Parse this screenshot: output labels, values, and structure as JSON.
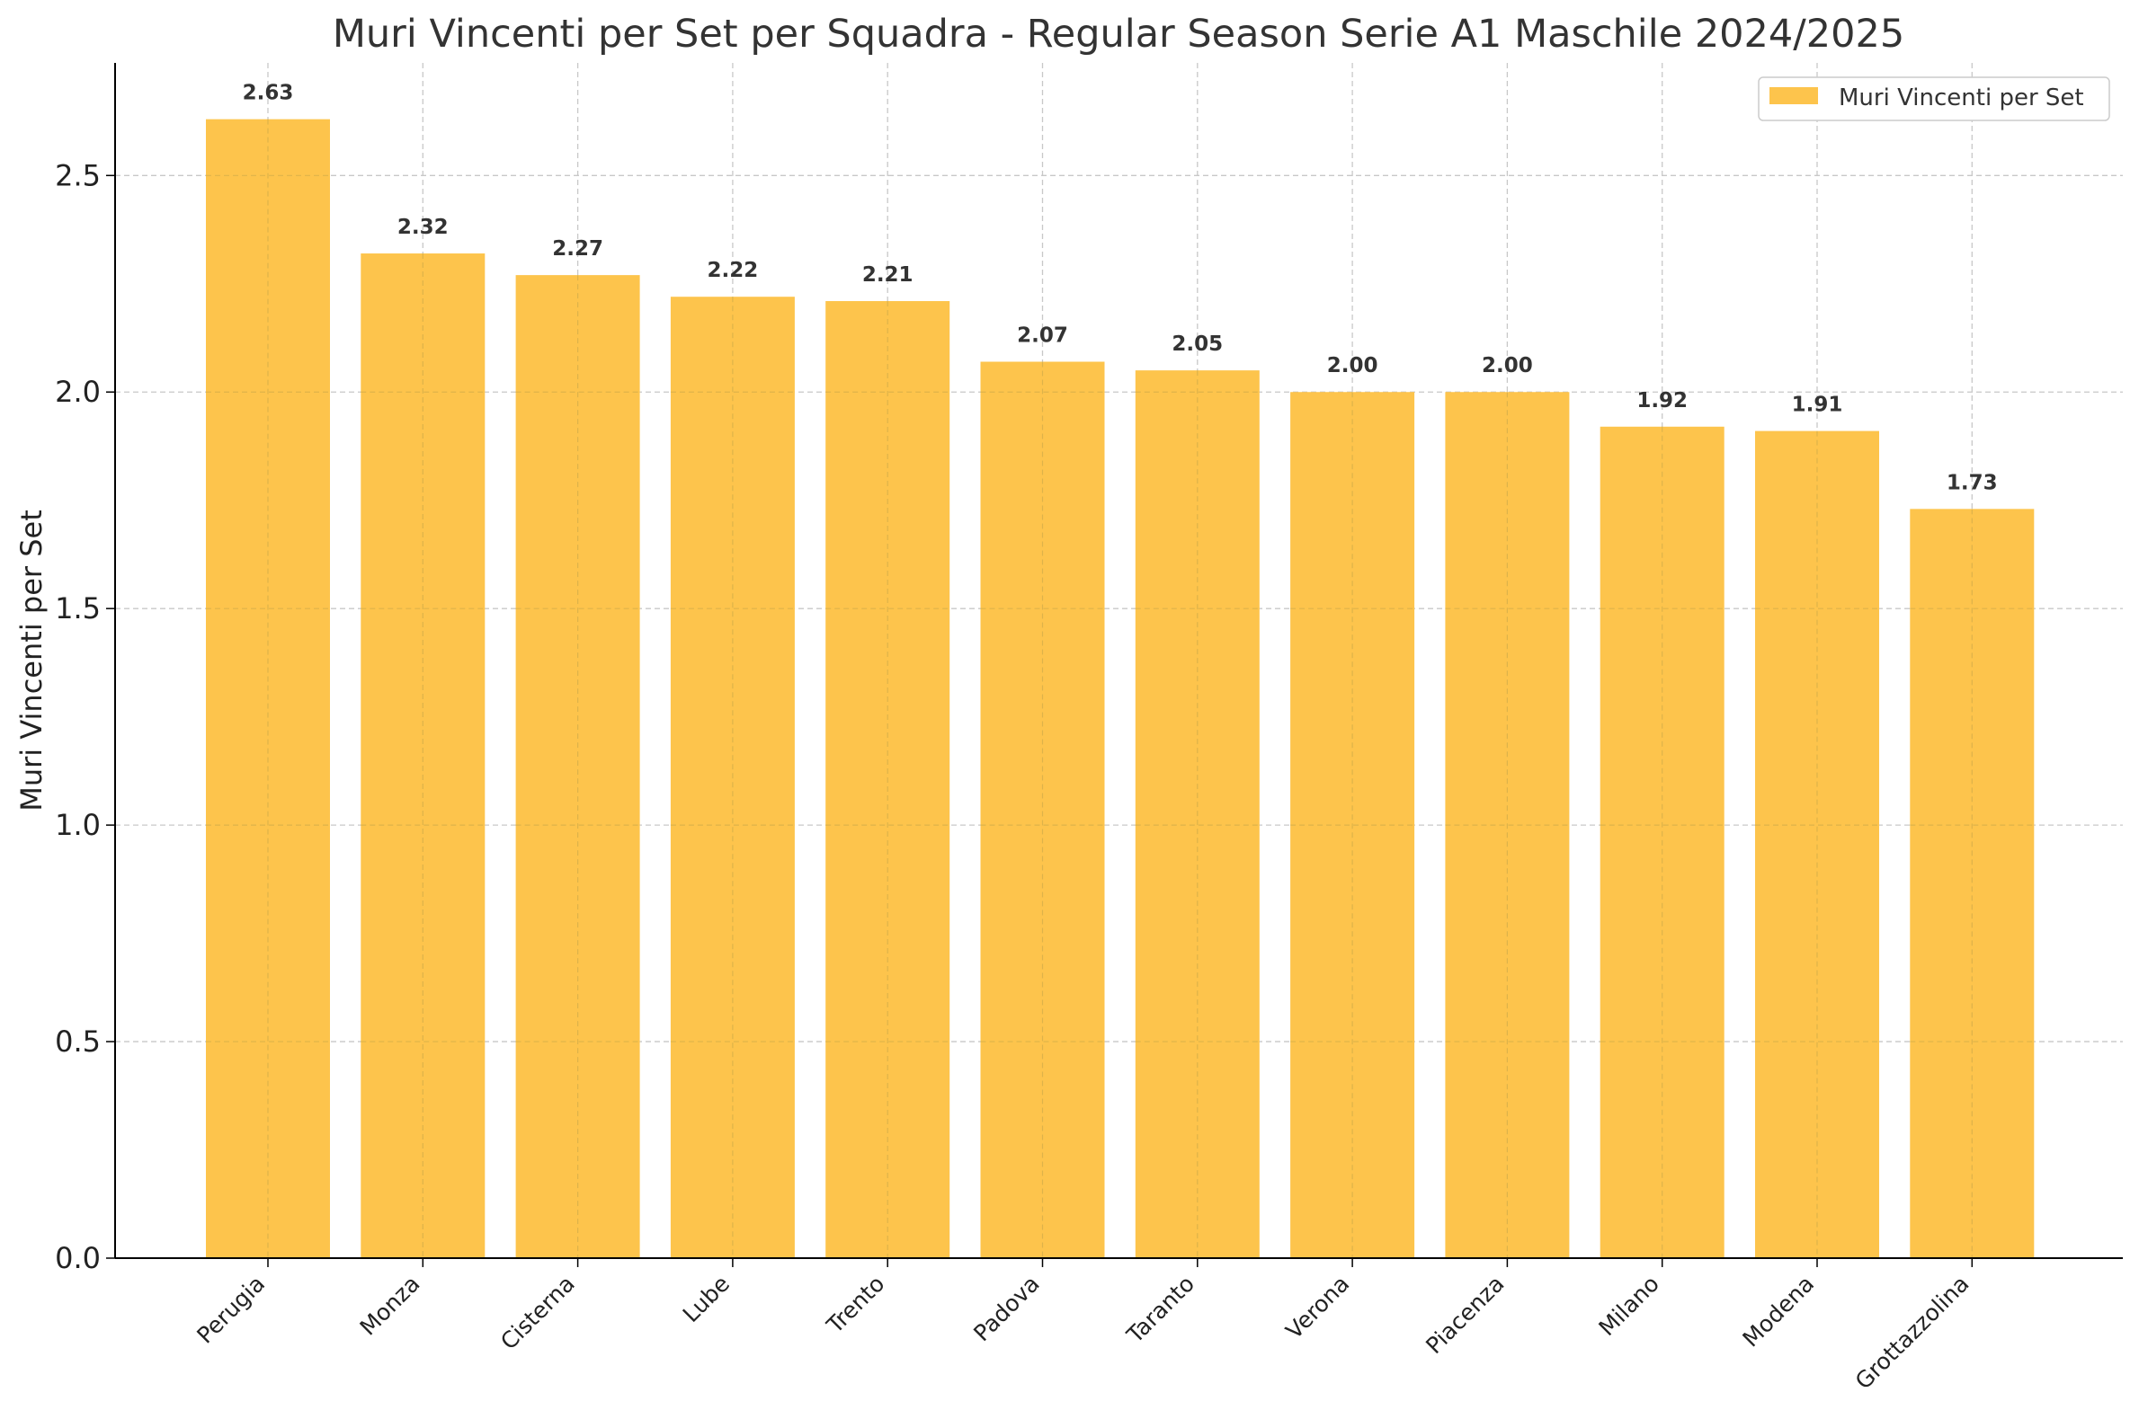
{
  "chart_data": {
    "type": "bar",
    "title": "Muri Vincenti per Set per Squadra - Regular Season Serie A1 Maschile 2024/2025",
    "xlabel": "",
    "ylabel": "Muri Vincenti per Set",
    "categories": [
      "Perugia",
      "Monza",
      "Cisterna",
      "Lube",
      "Trento",
      "Padova",
      "Taranto",
      "Verona",
      "Piacenza",
      "Milano",
      "Modena",
      "Grottazzolina"
    ],
    "series": [
      {
        "name": "Muri Vincenti per Set",
        "values": [
          2.63,
          2.32,
          2.27,
          2.22,
          2.21,
          2.07,
          2.05,
          2.0,
          2.0,
          1.92,
          1.91,
          1.73
        ],
        "data_labels": [
          "2.63",
          "2.32",
          "2.27",
          "2.22",
          "2.21",
          "2.07",
          "2.05",
          "2.00",
          "2.00",
          "1.92",
          "1.91",
          "1.73"
        ]
      }
    ],
    "yticks": [
      0.0,
      0.5,
      1.0,
      1.5,
      2.0,
      2.5
    ],
    "ytick_labels": [
      "0.0",
      "0.5",
      "1.0",
      "1.5",
      "2.0",
      "2.5"
    ],
    "ylim": [
      0,
      2.76
    ],
    "grid": true,
    "legend_position": "top-right",
    "colors": {
      "bar": "#FDC44C",
      "grid": "#c8c8c8",
      "axis": "#000000",
      "text": "#333333"
    }
  }
}
